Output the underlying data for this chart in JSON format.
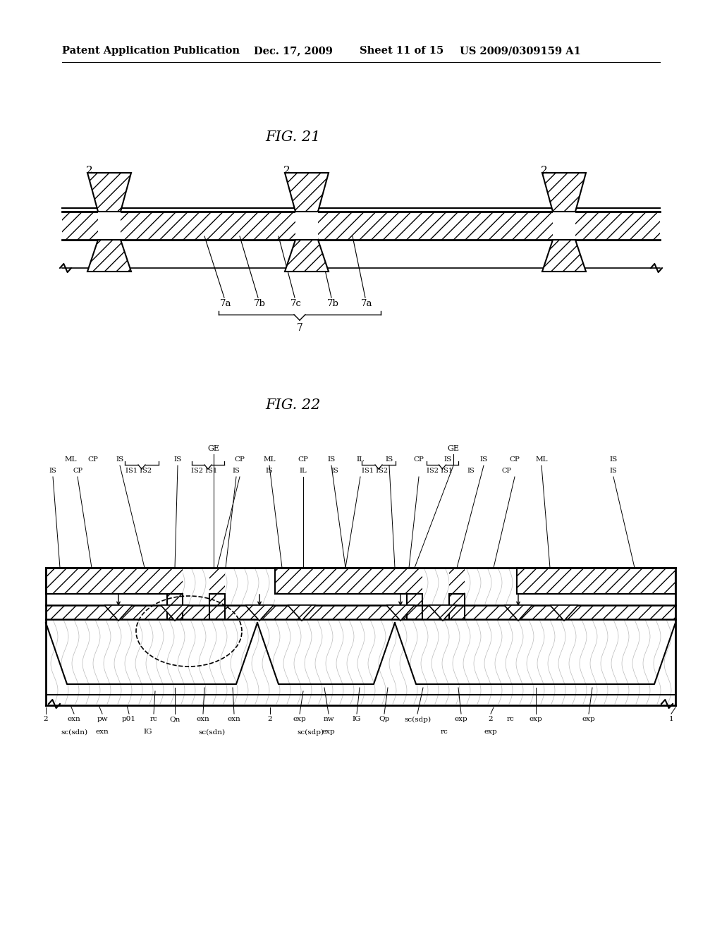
{
  "background_color": "#ffffff",
  "header_text": "Patent Application Publication",
  "header_date": "Dec. 17, 2009",
  "header_sheet": "Sheet 11 of 15",
  "header_patent": "US 2009/0309159 A1",
  "fig21_title": "FIG. 21",
  "fig22_title": "FIG. 22",
  "lc": "#000000"
}
